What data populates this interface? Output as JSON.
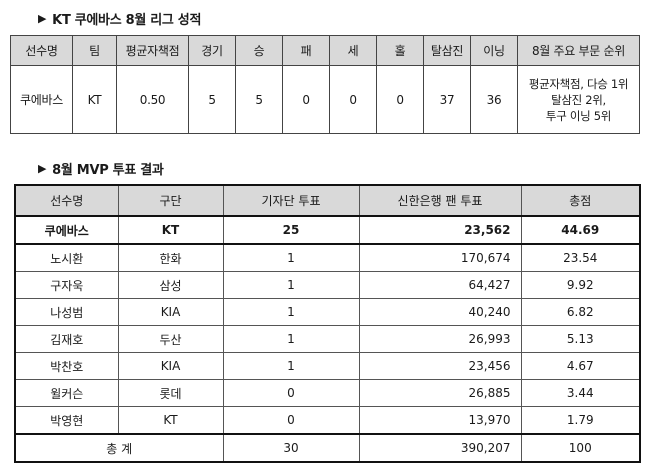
{
  "section1": {
    "title": "KT 쿠에바스 8월 리그 성적",
    "headers": [
      "선수명",
      "팀",
      "평균자책점",
      "경기",
      "승",
      "패",
      "세",
      "홀",
      "탈삼진",
      "이닝",
      "8월 주요 부문 순위"
    ],
    "row": [
      "쿠에바스",
      "KT",
      "0.50",
      "5",
      "5",
      "0",
      "0",
      "0",
      "37",
      "36"
    ],
    "rank_lines": [
      "평균자책점, 다승 1위",
      "탈삼진 2위,",
      "투구 이닝 5위"
    ]
  },
  "section2": {
    "title": "8월 MVP 투표 결과",
    "headers": [
      "선수명",
      "구단",
      "기자단 투표",
      "신한은행 팬 투표",
      "총점"
    ],
    "rows": [
      [
        "쿠에바스",
        "KT",
        "25",
        "23,562",
        "44.69"
      ],
      [
        "노시환",
        "한화",
        "1",
        "170,674",
        "23.54"
      ],
      [
        "구자욱",
        "삼성",
        "1",
        "64,427",
        "9.92"
      ],
      [
        "나성범",
        "KIA",
        "1",
        "40,240",
        "6.82"
      ],
      [
        "김재호",
        "두산",
        "1",
        "26,993",
        "5.13"
      ],
      [
        "박찬호",
        "KIA",
        "1",
        "23,456",
        "4.67"
      ],
      [
        "윌커슨",
        "롯데",
        "0",
        "26,885",
        "3.44"
      ],
      [
        "박영현",
        "KT",
        "0",
        "13,970",
        "1.79"
      ]
    ],
    "total": [
      "총 계",
      "30",
      "390,207",
      "100"
    ]
  }
}
